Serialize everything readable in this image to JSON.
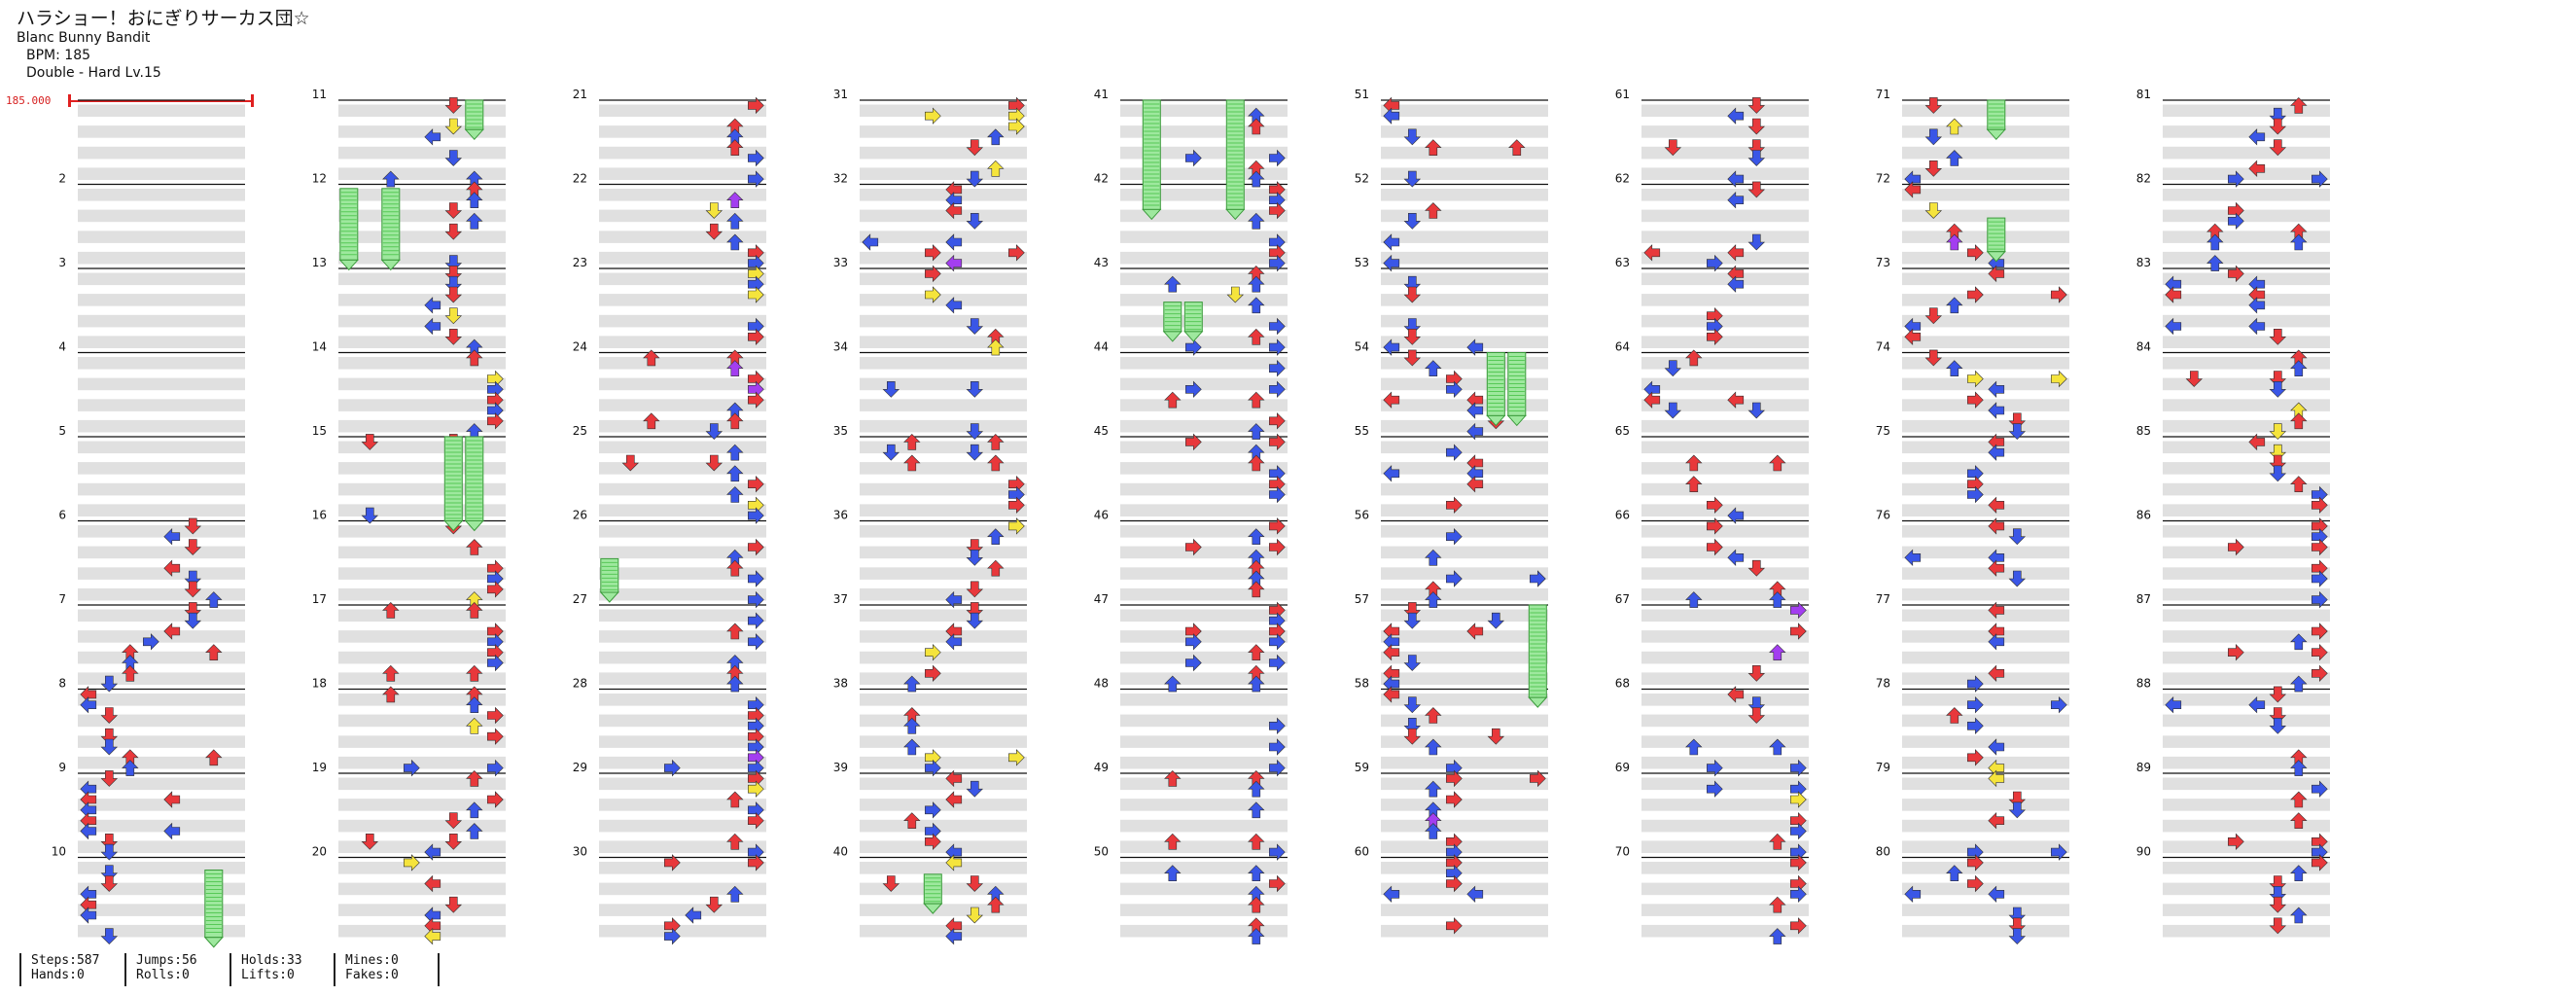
{
  "song": {
    "title": "ハラショー！おにぎりサーカス団☆",
    "artist": "Blanc Bunny Bandit",
    "bpm": "BPM: 185",
    "difficulty": "Double - Hard Lv.15"
  },
  "bpm_change": {
    "label": "185.000"
  },
  "measure_labels": [
    "2",
    "3",
    "4",
    "5",
    "6",
    "7",
    "8",
    "9",
    "10",
    "11",
    "12",
    "13",
    "14",
    "15",
    "16",
    "17",
    "18",
    "19",
    "20",
    "21",
    "22",
    "23",
    "24",
    "25",
    "26",
    "27",
    "28",
    "29",
    "30",
    "31",
    "32",
    "33",
    "34",
    "35",
    "36",
    "37",
    "38",
    "39",
    "40",
    "41",
    "42",
    "43",
    "44",
    "45",
    "46",
    "47",
    "48",
    "49",
    "50",
    "51",
    "52",
    "53",
    "54",
    "55",
    "56",
    "57",
    "58",
    "59",
    "60",
    "61",
    "62",
    "63",
    "64",
    "65",
    "66",
    "67",
    "68",
    "69",
    "70",
    "71",
    "72",
    "73",
    "74",
    "75",
    "76",
    "77",
    "78",
    "79",
    "80",
    "81",
    "82",
    "83",
    "84",
    "85",
    "86",
    "87",
    "88",
    "89",
    "90"
  ],
  "stats": {
    "steps": "Steps:587",
    "hands": "Hands:0",
    "jumps": "Jumps:56",
    "rolls": "Rolls:0",
    "holds": "Holds:33",
    "lifts": "Lifts:0",
    "mines": "Mines:0",
    "fakes": "Fakes:0"
  },
  "colors": {
    "quarter": "#e8383b",
    "eighth": "#3a56e6",
    "sixteenth": "#f5e43c",
    "other": "#a33ef0",
    "hold": "#9ee89e",
    "band": "#e0e0e0"
  },
  "icons": {
    "note": "arrow-icon",
    "hold": "hold-bar-icon"
  }
}
